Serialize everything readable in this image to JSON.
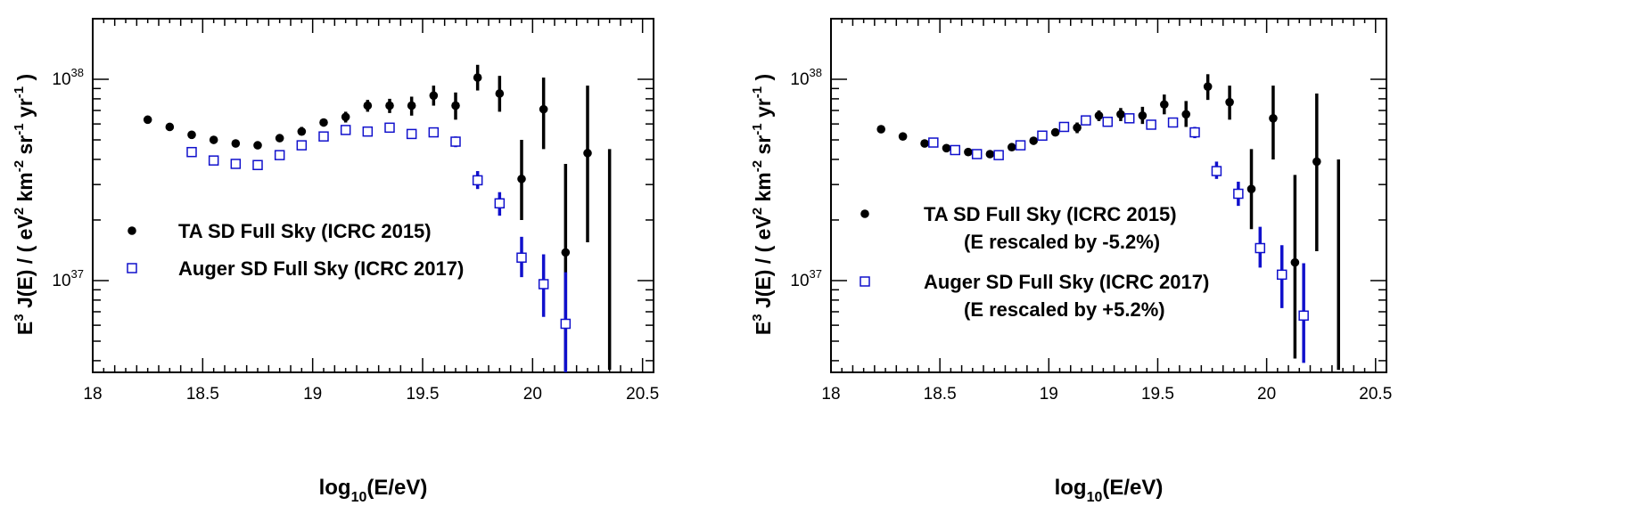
{
  "chart_data": [
    {
      "type": "scatter",
      "xlabel": {
        "base": "log",
        "sub": "10",
        "rest": "(E/eV)"
      },
      "ylabel": "E3 J(E) / ( eV2 km-2 sr-1 yr-1 )",
      "xlim": [
        18,
        20.55
      ],
      "ylim": [
        3.5e+36,
        2e+38
      ],
      "yscale": "log",
      "x_ticks": [
        18,
        18.5,
        19,
        19.5,
        20,
        20.5
      ],
      "x_tick_labels": [
        "18",
        "18.5",
        "19",
        "19.5",
        "20",
        "20.5"
      ],
      "y_tick_labels": [
        {
          "value": 1e+37,
          "mantissa": "10",
          "exp": "37"
        },
        {
          "value": 1e+38,
          "mantissa": "10",
          "exp": "38"
        }
      ],
      "legend_position": "middle-left",
      "series": [
        {
          "name": "TA SD Full Sky (ICRC 2015)",
          "color": "#000000",
          "marker": "filled-circle",
          "points": [
            {
              "x": 18.25,
              "y": 6.3e+37,
              "lo": 6.1e+37,
              "hi": 6.5e+37
            },
            {
              "x": 18.35,
              "y": 5.8e+37,
              "lo": 5.6e+37,
              "hi": 6e+37
            },
            {
              "x": 18.45,
              "y": 5.3e+37,
              "lo": 5.1e+37,
              "hi": 5.5e+37
            },
            {
              "x": 18.55,
              "y": 5e+37,
              "lo": 4.8e+37,
              "hi": 5.2e+37
            },
            {
              "x": 18.65,
              "y": 4.8e+37,
              "lo": 4.6e+37,
              "hi": 5e+37
            },
            {
              "x": 18.75,
              "y": 4.7e+37,
              "lo": 4.5e+37,
              "hi": 4.9e+37
            },
            {
              "x": 18.85,
              "y": 5.1e+37,
              "lo": 4.9e+37,
              "hi": 5.3e+37
            },
            {
              "x": 18.95,
              "y": 5.5e+37,
              "lo": 5.3e+37,
              "hi": 5.8e+37
            },
            {
              "x": 19.05,
              "y": 6.1e+37,
              "lo": 5.9e+37,
              "hi": 6.3e+37
            },
            {
              "x": 19.15,
              "y": 6.5e+37,
              "lo": 6.1e+37,
              "hi": 6.9e+37
            },
            {
              "x": 19.25,
              "y": 7.4e+37,
              "lo": 6.9e+37,
              "hi": 7.9e+37
            },
            {
              "x": 19.35,
              "y": 7.4e+37,
              "lo": 6.8e+37,
              "hi": 8e+37
            },
            {
              "x": 19.45,
              "y": 7.4e+37,
              "lo": 6.6e+37,
              "hi": 8.2e+37
            },
            {
              "x": 19.55,
              "y": 8.3e+37,
              "lo": 7.4e+37,
              "hi": 9.3e+37
            },
            {
              "x": 19.65,
              "y": 7.4e+37,
              "lo": 6.3e+37,
              "hi": 8.6e+37
            },
            {
              "x": 19.75,
              "y": 1.02e+38,
              "lo": 8.8e+37,
              "hi": 1.18e+38
            },
            {
              "x": 19.85,
              "y": 8.5e+37,
              "lo": 6.9e+37,
              "hi": 1.04e+38
            },
            {
              "x": 19.95,
              "y": 3.2e+37,
              "lo": 2e+37,
              "hi": 5e+37
            },
            {
              "x": 20.05,
              "y": 7.1e+37,
              "lo": 4.5e+37,
              "hi": 1.02e+38
            },
            {
              "x": 20.15,
              "y": 1.38e+37,
              "lo": 3.6e+36,
              "hi": 3.8e+37
            },
            {
              "x": 20.25,
              "y": 4.3e+37,
              "lo": 1.55e+37,
              "hi": 9.3e+37
            },
            {
              "x": 20.35,
              "y": null,
              "lo": 3.6e+36,
              "hi": 4.5e+37
            }
          ]
        },
        {
          "name": "Auger SD Full Sky (ICRC 2017)",
          "color": "#1010cc",
          "marker": "open-square",
          "points": [
            {
              "x": 18.45,
              "y": 4.35e+37,
              "lo": 4.25e+37,
              "hi": 4.45e+37
            },
            {
              "x": 18.55,
              "y": 3.95e+37,
              "lo": 3.85e+37,
              "hi": 4.05e+37
            },
            {
              "x": 18.65,
              "y": 3.8e+37,
              "lo": 3.7e+37,
              "hi": 3.9e+37
            },
            {
              "x": 18.75,
              "y": 3.75e+37,
              "lo": 3.65e+37,
              "hi": 3.85e+37
            },
            {
              "x": 18.85,
              "y": 4.2e+37,
              "lo": 4.1e+37,
              "hi": 4.3e+37
            },
            {
              "x": 18.95,
              "y": 4.7e+37,
              "lo": 4.6e+37,
              "hi": 4.8e+37
            },
            {
              "x": 19.05,
              "y": 5.2e+37,
              "lo": 5.1e+37,
              "hi": 5.3e+37
            },
            {
              "x": 19.15,
              "y": 5.6e+37,
              "lo": 5.5e+37,
              "hi": 5.7e+37
            },
            {
              "x": 19.25,
              "y": 5.5e+37,
              "lo": 5.4e+37,
              "hi": 5.6e+37
            },
            {
              "x": 19.35,
              "y": 5.75e+37,
              "lo": 5.6e+37,
              "hi": 5.9e+37
            },
            {
              "x": 19.45,
              "y": 5.35e+37,
              "lo": 5.2e+37,
              "hi": 5.5e+37
            },
            {
              "x": 19.55,
              "y": 5.45e+37,
              "lo": 5.2e+37,
              "hi": 5.7e+37
            },
            {
              "x": 19.65,
              "y": 4.9e+37,
              "lo": 4.6e+37,
              "hi": 5.2e+37
            },
            {
              "x": 19.75,
              "y": 3.15e+37,
              "lo": 2.85e+37,
              "hi": 3.5e+37
            },
            {
              "x": 19.85,
              "y": 2.42e+37,
              "lo": 2.1e+37,
              "hi": 2.75e+37
            },
            {
              "x": 19.95,
              "y": 1.3e+37,
              "lo": 1.04e+37,
              "hi": 1.65e+37
            },
            {
              "x": 20.05,
              "y": 9.6e+36,
              "lo": 6.6e+36,
              "hi": 1.35e+37
            },
            {
              "x": 20.15,
              "y": 6.1e+36,
              "lo": 3.5e+36,
              "hi": 1.1e+37
            }
          ]
        }
      ],
      "legend": [
        {
          "lines": [
            "TA SD Full Sky (ICRC 2015)"
          ]
        },
        {
          "lines": [
            "Auger SD Full Sky (ICRC 2017)"
          ]
        }
      ]
    },
    {
      "type": "scatter",
      "xlabel": {
        "base": "log",
        "sub": "10",
        "rest": "(E/eV)"
      },
      "ylabel": "E3 J(E) / ( eV2 km-2 sr-1 yr-1 )",
      "xlim": [
        18,
        20.55
      ],
      "ylim": [
        3.5e+36,
        2e+38
      ],
      "yscale": "log",
      "x_ticks": [
        18,
        18.5,
        19,
        19.5,
        20,
        20.5
      ],
      "x_tick_labels": [
        "18",
        "18.5",
        "19",
        "19.5",
        "20",
        "20.5"
      ],
      "y_tick_labels": [
        {
          "value": 1e+37,
          "mantissa": "10",
          "exp": "37"
        },
        {
          "value": 1e+38,
          "mantissa": "10",
          "exp": "38"
        }
      ],
      "legend_position": "middle-left",
      "series": [
        {
          "name": "TA SD Full Sky (ICRC 2015)",
          "color": "#000000",
          "marker": "filled-circle",
          "points": [
            {
              "x": 18.23,
              "y": 5.65e+37,
              "lo": 5.5e+37,
              "hi": 5.8e+37
            },
            {
              "x": 18.33,
              "y": 5.2e+37,
              "lo": 5.05e+37,
              "hi": 5.35e+37
            },
            {
              "x": 18.43,
              "y": 4.8e+37,
              "lo": 4.65e+37,
              "hi": 4.95e+37
            },
            {
              "x": 18.53,
              "y": 4.55e+37,
              "lo": 4.4e+37,
              "hi": 4.7e+37
            },
            {
              "x": 18.63,
              "y": 4.35e+37,
              "lo": 4.2e+37,
              "hi": 4.5e+37
            },
            {
              "x": 18.73,
              "y": 4.25e+37,
              "lo": 4.1e+37,
              "hi": 4.4e+37
            },
            {
              "x": 18.83,
              "y": 4.6e+37,
              "lo": 4.45e+37,
              "hi": 4.75e+37
            },
            {
              "x": 18.93,
              "y": 4.95e+37,
              "lo": 4.8e+37,
              "hi": 5.1e+37
            },
            {
              "x": 19.03,
              "y": 5.45e+37,
              "lo": 5.3e+37,
              "hi": 5.6e+37
            },
            {
              "x": 19.13,
              "y": 5.75e+37,
              "lo": 5.4e+37,
              "hi": 6.1e+37
            },
            {
              "x": 19.23,
              "y": 6.6e+37,
              "lo": 6.2e+37,
              "hi": 7e+37
            },
            {
              "x": 19.33,
              "y": 6.7e+37,
              "lo": 6.2e+37,
              "hi": 7.2e+37
            },
            {
              "x": 19.43,
              "y": 6.6e+37,
              "lo": 6e+37,
              "hi": 7.3e+37
            },
            {
              "x": 19.53,
              "y": 7.5e+37,
              "lo": 6.7e+37,
              "hi": 8.4e+37
            },
            {
              "x": 19.63,
              "y": 6.7e+37,
              "lo": 5.8e+37,
              "hi": 7.8e+37
            },
            {
              "x": 19.73,
              "y": 9.2e+37,
              "lo": 7.9e+37,
              "hi": 1.06e+38
            },
            {
              "x": 19.83,
              "y": 7.7e+37,
              "lo": 6.3e+37,
              "hi": 9.3e+37
            },
            {
              "x": 19.93,
              "y": 2.85e+37,
              "lo": 1.8e+37,
              "hi": 4.5e+37
            },
            {
              "x": 20.03,
              "y": 6.4e+37,
              "lo": 4e+37,
              "hi": 9.3e+37
            },
            {
              "x": 20.13,
              "y": 1.23e+37,
              "lo": 4.1e+36,
              "hi": 3.35e+37
            },
            {
              "x": 20.23,
              "y": 3.9e+37,
              "lo": 1.4e+37,
              "hi": 8.5e+37
            },
            {
              "x": 20.33,
              "y": null,
              "lo": 3.6e+36,
              "hi": 4e+37
            }
          ]
        },
        {
          "name": "Auger SD Full Sky (ICRC 2017)",
          "color": "#1010cc",
          "marker": "open-square",
          "points": [
            {
              "x": 18.47,
              "y": 4.85e+37,
              "lo": 4.75e+37,
              "hi": 4.95e+37
            },
            {
              "x": 18.57,
              "y": 4.45e+37,
              "lo": 4.35e+37,
              "hi": 4.55e+37
            },
            {
              "x": 18.67,
              "y": 4.25e+37,
              "lo": 4.15e+37,
              "hi": 4.35e+37
            },
            {
              "x": 18.77,
              "y": 4.2e+37,
              "lo": 4.1e+37,
              "hi": 4.3e+37
            },
            {
              "x": 18.87,
              "y": 4.7e+37,
              "lo": 4.6e+37,
              "hi": 4.8e+37
            },
            {
              "x": 18.97,
              "y": 5.25e+37,
              "lo": 5.15e+37,
              "hi": 5.35e+37
            },
            {
              "x": 19.07,
              "y": 5.8e+37,
              "lo": 5.7e+37,
              "hi": 5.9e+37
            },
            {
              "x": 19.17,
              "y": 6.25e+37,
              "lo": 6.1e+37,
              "hi": 6.4e+37
            },
            {
              "x": 19.27,
              "y": 6.15e+37,
              "lo": 6e+37,
              "hi": 6.3e+37
            },
            {
              "x": 19.37,
              "y": 6.4e+37,
              "lo": 6.25e+37,
              "hi": 6.55e+37
            },
            {
              "x": 19.47,
              "y": 5.95e+37,
              "lo": 5.8e+37,
              "hi": 6.1e+37
            },
            {
              "x": 19.57,
              "y": 6.1e+37,
              "lo": 5.8e+37,
              "hi": 6.4e+37
            },
            {
              "x": 19.67,
              "y": 5.45e+37,
              "lo": 5.1e+37,
              "hi": 5.8e+37
            },
            {
              "x": 19.77,
              "y": 3.5e+37,
              "lo": 3.2e+37,
              "hi": 3.9e+37
            },
            {
              "x": 19.87,
              "y": 2.7e+37,
              "lo": 2.35e+37,
              "hi": 3.1e+37
            },
            {
              "x": 19.97,
              "y": 1.45e+37,
              "lo": 1.16e+37,
              "hi": 1.85e+37
            },
            {
              "x": 20.07,
              "y": 1.07e+37,
              "lo": 7.3e+36,
              "hi": 1.5e+37
            },
            {
              "x": 20.17,
              "y": 6.7e+36,
              "lo": 3.9e+36,
              "hi": 1.22e+37
            }
          ]
        }
      ],
      "legend": [
        {
          "lines": [
            "TA SD Full Sky (ICRC 2015)",
            "(E rescaled by -5.2%)"
          ]
        },
        {
          "lines": [
            "Auger SD Full Sky (ICRC 2017)",
            "(E rescaled by +5.2%)"
          ]
        }
      ]
    }
  ]
}
